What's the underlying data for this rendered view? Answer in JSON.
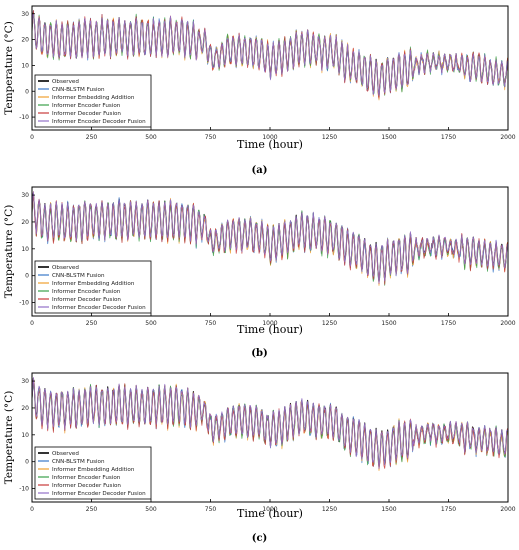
{
  "chart_data": [
    {
      "type": "line",
      "panel_label": "(a)",
      "xlabel": "Time (hour)",
      "ylabel": "Temperature (°C)",
      "xlim": [
        0,
        2000
      ],
      "ylim": [
        -15,
        33
      ],
      "xticks": [
        0,
        250,
        500,
        750,
        1000,
        1250,
        1500,
        1750,
        2000
      ],
      "yticks": [
        -10,
        0,
        10,
        20,
        30
      ],
      "grid": false,
      "legend_position": "lower-left",
      "series": [
        {
          "name": "Observed",
          "color": "#000000"
        },
        {
          "name": "CNN-BLSTM Fusion",
          "color": "#3a78c8"
        },
        {
          "name": "Informer Embedding Addition",
          "color": "#f0a030"
        },
        {
          "name": "Informer Encoder Fusion",
          "color": "#3aa04a"
        },
        {
          "name": "Informer Decoder Fusion",
          "color": "#c83a3a"
        },
        {
          "name": "Informer Encoder Decoder Fusion",
          "color": "#9370c8"
        }
      ]
    },
    {
      "type": "line",
      "panel_label": "(b)",
      "xlabel": "Time (hour)",
      "ylabel": "Temperature (°C)",
      "xlim": [
        0,
        2000
      ],
      "ylim": [
        -15,
        33
      ],
      "xticks": [
        0,
        250,
        500,
        750,
        1000,
        1250,
        1500,
        1750,
        2000
      ],
      "yticks": [
        -10,
        0,
        10,
        20,
        30
      ],
      "grid": false,
      "legend_position": "lower-left",
      "series": [
        {
          "name": "Observed",
          "color": "#000000"
        },
        {
          "name": "CNN-BLSTM Fusion",
          "color": "#3a78c8"
        },
        {
          "name": "Informer Embedding Addition",
          "color": "#f0a030"
        },
        {
          "name": "Informer Encoder Fusion",
          "color": "#3aa04a"
        },
        {
          "name": "Informer Decoder Fusion",
          "color": "#c83a3a"
        },
        {
          "name": "Informer Encoder Decoder Fusion",
          "color": "#9370c8"
        }
      ]
    },
    {
      "type": "line",
      "panel_label": "(c)",
      "xlabel": "Time (hour)",
      "ylabel": "Temperature (°C)",
      "xlim": [
        0,
        2000
      ],
      "ylim": [
        -15,
        33
      ],
      "xticks": [
        0,
        250,
        500,
        750,
        1000,
        1250,
        1500,
        1750,
        2000
      ],
      "yticks": [
        -10,
        0,
        10,
        20,
        30
      ],
      "grid": false,
      "legend_position": "lower-left",
      "series": [
        {
          "name": "Observed",
          "color": "#000000"
        },
        {
          "name": "CNN-BLSTM Fusion",
          "color": "#3a78c8"
        },
        {
          "name": "Informer Embedding Addition",
          "color": "#f0a030"
        },
        {
          "name": "Informer Encoder Fusion",
          "color": "#3aa04a"
        },
        {
          "name": "Informer Decoder Fusion",
          "color": "#c83a3a"
        },
        {
          "name": "Informer Encoder Decoder Fusion",
          "color": "#9370c8"
        }
      ]
    }
  ]
}
